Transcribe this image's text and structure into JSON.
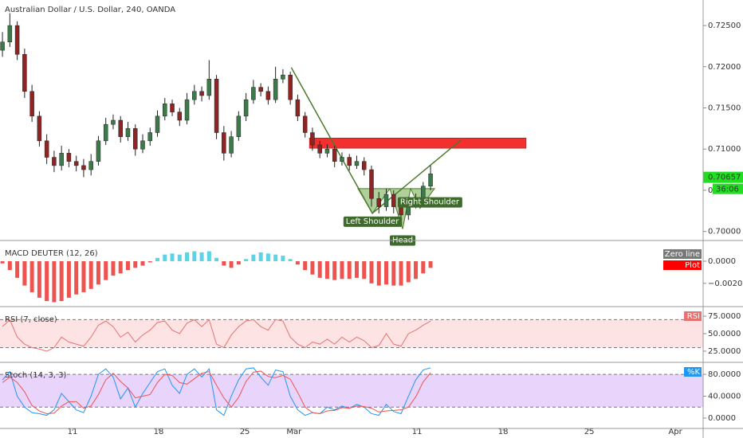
{
  "chart_data": [
    {
      "type": "candlestick",
      "title": "Australian Dollar / U.S. Dollar, 240, OANDA",
      "x": [
        5.3,
        5.9,
        6.5,
        7.1,
        7.7,
        8.3,
        8.9,
        9.5,
        10.1,
        10.7,
        11.3,
        11.9,
        12.5,
        13.1,
        13.7,
        14.3,
        14.9,
        15.5,
        16.1,
        16.7,
        17.3,
        17.9,
        18.5,
        19.1,
        19.7,
        20.3,
        20.9,
        21.5,
        22.1,
        22.7,
        23.3,
        23.9,
        24.5,
        25.1,
        25.7,
        26.3,
        26.9,
        27.5,
        28.1,
        28.7,
        29.3,
        29.9,
        30.5,
        31.1,
        31.7,
        32.3,
        32.9,
        33.5,
        34.1,
        34.7,
        35.3,
        35.9,
        36.5,
        37.1,
        37.7,
        38.3,
        38.9,
        39.5,
        40.1
      ],
      "open": [
        0.722,
        0.723,
        0.725,
        0.7215,
        0.717,
        0.714,
        0.711,
        0.709,
        0.708,
        0.7095,
        0.7085,
        0.708,
        0.7075,
        0.7085,
        0.711,
        0.713,
        0.7135,
        0.7115,
        0.7125,
        0.71,
        0.711,
        0.712,
        0.714,
        0.7155,
        0.7145,
        0.7135,
        0.716,
        0.717,
        0.7165,
        0.7185,
        0.712,
        0.7095,
        0.7115,
        0.714,
        0.716,
        0.7175,
        0.717,
        0.716,
        0.7185,
        0.719,
        0.716,
        0.714,
        0.712,
        0.7105,
        0.7095,
        0.71,
        0.7085,
        0.709,
        0.708,
        0.7085,
        0.7075,
        0.704,
        0.703,
        0.7045,
        0.703,
        0.702,
        0.7035,
        0.704,
        0.7055
      ],
      "high": [
        0.7242,
        0.7265,
        0.7255,
        0.7222,
        0.7178,
        0.7146,
        0.7118,
        0.7098,
        0.7104,
        0.71,
        0.7092,
        0.7088,
        0.7094,
        0.7116,
        0.7138,
        0.7142,
        0.714,
        0.7133,
        0.713,
        0.7118,
        0.7126,
        0.7147,
        0.7162,
        0.716,
        0.715,
        0.7168,
        0.7178,
        0.7176,
        0.7208,
        0.719,
        0.7128,
        0.7122,
        0.7146,
        0.7168,
        0.7184,
        0.718,
        0.7176,
        0.72,
        0.7197,
        0.7194,
        0.7166,
        0.7145,
        0.7126,
        0.711,
        0.7106,
        0.7104,
        0.7096,
        0.7094,
        0.7092,
        0.709,
        0.708,
        0.7048,
        0.7052,
        0.705,
        0.7036,
        0.7042,
        0.7046,
        0.706,
        0.708
      ],
      "low": [
        0.7212,
        0.7224,
        0.7208,
        0.7162,
        0.7133,
        0.7103,
        0.7082,
        0.7072,
        0.7074,
        0.7078,
        0.7073,
        0.7066,
        0.7068,
        0.708,
        0.7105,
        0.7124,
        0.7108,
        0.711,
        0.7092,
        0.7095,
        0.7104,
        0.7115,
        0.7135,
        0.714,
        0.7128,
        0.713,
        0.7154,
        0.7158,
        0.716,
        0.7112,
        0.7086,
        0.709,
        0.711,
        0.7134,
        0.7155,
        0.7164,
        0.7154,
        0.7156,
        0.718,
        0.7154,
        0.7134,
        0.7114,
        0.7098,
        0.7089,
        0.709,
        0.7078,
        0.708,
        0.7074,
        0.7076,
        0.7068,
        0.703,
        0.7022,
        0.7025,
        0.7022,
        0.7008,
        0.7014,
        0.7028,
        0.7034,
        0.705
      ],
      "close": [
        0.723,
        0.725,
        0.7215,
        0.717,
        0.714,
        0.711,
        0.709,
        0.708,
        0.7095,
        0.7085,
        0.708,
        0.7075,
        0.7085,
        0.711,
        0.713,
        0.7135,
        0.7115,
        0.7125,
        0.71,
        0.711,
        0.712,
        0.714,
        0.7155,
        0.7145,
        0.7135,
        0.716,
        0.717,
        0.7165,
        0.7185,
        0.712,
        0.7095,
        0.7115,
        0.714,
        0.716,
        0.7175,
        0.717,
        0.716,
        0.7185,
        0.719,
        0.716,
        0.714,
        0.712,
        0.7105,
        0.7095,
        0.71,
        0.7085,
        0.709,
        0.708,
        0.7085,
        0.7075,
        0.704,
        0.703,
        0.7045,
        0.703,
        0.702,
        0.7035,
        0.704,
        0.7055,
        0.707
      ],
      "colors": {
        "up": "#3d7a4a",
        "down": "#8e2424"
      },
      "xlim": [
        5.1,
        62.26
      ],
      "xticks": [
        11,
        18,
        25,
        {
          "value": 29,
          "label": "Mar"
        },
        {
          "value": 39,
          "label": "11"
        },
        {
          "value": 46,
          "label": "18"
        },
        {
          "value": 53,
          "label": "25"
        },
        {
          "value": 60,
          "label": "Apr"
        }
      ],
      "ylim": [
        0.6989,
        0.7281
      ],
      "yticks": [
        {
          "value": 0.725,
          "label": "0.72500"
        },
        {
          "value": 0.72,
          "label": "0.72000"
        },
        {
          "value": 0.715,
          "label": "0.71500"
        },
        {
          "value": 0.71,
          "label": "0.71000"
        },
        {
          "value": 0.705,
          "label": "0.70500"
        },
        {
          "value": 0.7,
          "label": "0.70000"
        }
      ],
      "last_price": 0.70657,
      "countdown": "36:06",
      "zone": {
        "x": [
          30.25,
          47.87
        ],
        "y": [
          0.7101,
          0.71135
        ],
        "color": "#f23030"
      },
      "pattern": [
        [
          28.78,
          0.7199
        ],
        [
          35.37,
          0.7022
        ],
        [
          42.56,
          0.7111
        ]
      ],
      "shoulders": [
        [
          [
            34.2,
            0.7052
          ],
          [
            36.79,
            0.7052
          ],
          [
            35.37,
            0.7022
          ]
        ],
        [
          [
            36.79,
            0.7052
          ],
          [
            38.48,
            0.7052
          ],
          [
            37.83,
            0.7003
          ]
        ],
        [
          [
            38.48,
            0.7052
          ],
          [
            40.42,
            0.7052
          ],
          [
            39.25,
            0.7028
          ]
        ]
      ],
      "pattern_labels": [
        "Left Shoulder",
        "Head",
        "Right Shoulder"
      ]
    },
    {
      "type": "histogram",
      "title": "MACD DEUTER (12, 26)",
      "values": [
        -0.0002,
        -0.0008,
        -0.0015,
        -0.0022,
        -0.0028,
        -0.0033,
        -0.0036,
        -0.0037,
        -0.0036,
        -0.0033,
        -0.003,
        -0.0028,
        -0.0025,
        -0.0021,
        -0.0017,
        -0.0013,
        -0.0011,
        -0.0008,
        -0.0006,
        -0.0004,
        -0.0001,
        0.0003,
        0.0006,
        0.0007,
        0.0006,
        0.0008,
        0.0009,
        0.0008,
        0.0009,
        0.0003,
        -0.0004,
        -0.0006,
        -0.0003,
        0.0002,
        0.0006,
        0.0008,
        0.0007,
        0.0006,
        0.0005,
        0.0002,
        -0.0003,
        -0.0008,
        -0.0012,
        -0.0015,
        -0.0016,
        -0.0017,
        -0.0016,
        -0.0016,
        -0.0015,
        -0.0016,
        -0.002,
        -0.0022,
        -0.0021,
        -0.0022,
        -0.0022,
        -0.0019,
        -0.0016,
        -0.0011,
        -0.0006
      ],
      "colors": {
        "positive": "#5fd3e6",
        "negative": "#ef5350"
      },
      "legend": [
        {
          "name": "Zero line",
          "color": "#787878"
        },
        {
          "name": "Plot",
          "color": "#ff0000"
        }
      ],
      "ylim": [
        -0.0041,
        0.0018
      ],
      "yticks": [
        {
          "value": 0,
          "label": "0.0000"
        },
        {
          "value": -0.002,
          "label": "−0.0020"
        }
      ]
    },
    {
      "type": "line",
      "title": "RSI (7, close)",
      "series": [
        {
          "name": "RSI",
          "color": "#e57373",
          "values": [
            60,
            70,
            45,
            35,
            30,
            28,
            25,
            30,
            45,
            38,
            35,
            32,
            45,
            62,
            68,
            60,
            45,
            52,
            38,
            48,
            55,
            66,
            68,
            55,
            50,
            65,
            70,
            60,
            70,
            35,
            30,
            48,
            60,
            68,
            70,
            60,
            55,
            70,
            68,
            45,
            35,
            30,
            38,
            35,
            42,
            35,
            45,
            38,
            45,
            40,
            30,
            33,
            50,
            35,
            32,
            50,
            55,
            62,
            68
          ]
        }
      ],
      "bands": [
        30,
        70
      ],
      "band_color": "#fde3e3",
      "ylim": [
        9,
        87.5
      ],
      "yticks": [
        {
          "value": 75,
          "label": "75.0000"
        },
        {
          "value": 50,
          "label": "50.0000"
        },
        {
          "value": 25,
          "label": "25.0000"
        }
      ]
    },
    {
      "type": "line",
      "title": "Stoch (14, 3, 3)",
      "series": [
        {
          "name": "%K",
          "color": "#2196f3",
          "values": [
            70,
            85,
            40,
            20,
            10,
            8,
            5,
            15,
            45,
            30,
            15,
            10,
            40,
            80,
            90,
            75,
            35,
            55,
            20,
            45,
            65,
            85,
            90,
            60,
            45,
            80,
            90,
            75,
            90,
            15,
            5,
            40,
            70,
            90,
            92,
            75,
            60,
            88,
            85,
            40,
            15,
            5,
            10,
            8,
            20,
            15,
            22,
            18,
            25,
            20,
            8,
            5,
            25,
            12,
            8,
            40,
            70,
            88,
            92
          ]
        },
        {
          "color": "#ef5350",
          "values": [
            65,
            75,
            65,
            48,
            23,
            13,
            8,
            9,
            22,
            30,
            30,
            18,
            22,
            43,
            70,
            82,
            67,
            55,
            37,
            40,
            43,
            65,
            80,
            78,
            65,
            62,
            72,
            82,
            85,
            60,
            37,
            20,
            38,
            67,
            84,
            86,
            76,
            74,
            78,
            71,
            47,
            20,
            10,
            8,
            13,
            14,
            19,
            18,
            22,
            21,
            18,
            11,
            13,
            14,
            15,
            20,
            39,
            66,
            83
          ]
        }
      ],
      "bands": [
        20,
        80
      ],
      "band_color": "#e9d4fb",
      "ylim": [
        -19,
        100.5
      ],
      "yticks": [
        {
          "value": 80,
          "label": "80.0000"
        },
        {
          "value": 40,
          "label": "40.0000"
        },
        {
          "value": 0,
          "label": "0.0000"
        }
      ]
    }
  ]
}
